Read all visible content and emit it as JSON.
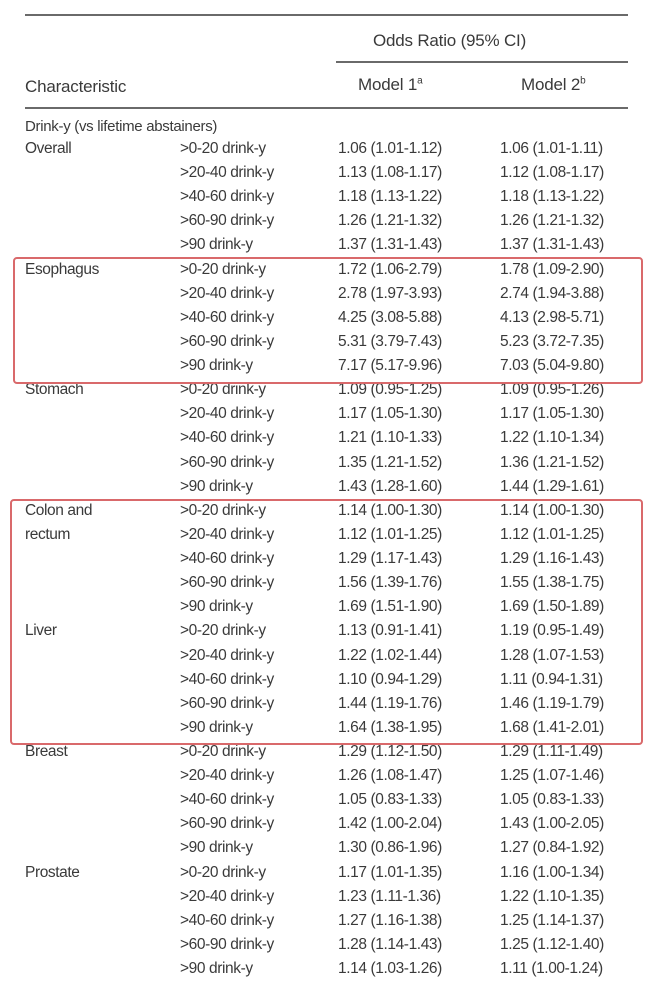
{
  "table": {
    "header": {
      "group_label": "Odds Ratio (95% CI)",
      "characteristic": "Characteristic",
      "model1": "Model 1",
      "model1_sup": "a",
      "model2": "Model 2",
      "model2_sup": "b"
    },
    "section_label": "Drink-y (vs lifetime abstainers)",
    "highlight_color": "#d9696b",
    "groups": [
      {
        "name": [
          "Overall"
        ],
        "highlighted": false,
        "rows": [
          [
            ">0-20 drink-y",
            "1.06 (1.01-1.12)",
            "1.06 (1.01-1.11)"
          ],
          [
            ">20-40 drink-y",
            "1.13 (1.08-1.17)",
            "1.12 (1.08-1.17)"
          ],
          [
            ">40-60 drink-y",
            "1.18 (1.13-1.22)",
            "1.18 (1.13-1.22)"
          ],
          [
            ">60-90 drink-y",
            "1.26 (1.21-1.32)",
            "1.26 (1.21-1.32)"
          ],
          [
            ">90 drink-y",
            "1.37 (1.31-1.43)",
            "1.37 (1.31-1.43)"
          ]
        ]
      },
      {
        "name": [
          "Esophagus"
        ],
        "highlighted": true,
        "rows": [
          [
            ">0-20 drink-y",
            "1.72 (1.06-2.79)",
            "1.78 (1.09-2.90)"
          ],
          [
            ">20-40 drink-y",
            "2.78 (1.97-3.93)",
            "2.74 (1.94-3.88)"
          ],
          [
            ">40-60 drink-y",
            "4.25 (3.08-5.88)",
            "4.13 (2.98-5.71)"
          ],
          [
            ">60-90 drink-y",
            "5.31 (3.79-7.43)",
            "5.23 (3.72-7.35)"
          ],
          [
            ">90 drink-y",
            "7.17 (5.17-9.96)",
            "7.03 (5.04-9.80)"
          ]
        ]
      },
      {
        "name": [
          "Stomach"
        ],
        "highlighted": false,
        "rows": [
          [
            ">0-20 drink-y",
            "1.09 (0.95-1.25)",
            "1.09 (0.95-1.26)"
          ],
          [
            ">20-40 drink-y",
            "1.17 (1.05-1.30)",
            "1.17 (1.05-1.30)"
          ],
          [
            ">40-60 drink-y",
            "1.21 (1.10-1.33)",
            "1.22 (1.10-1.34)"
          ],
          [
            ">60-90 drink-y",
            "1.35 (1.21-1.52)",
            "1.36 (1.21-1.52)"
          ],
          [
            ">90 drink-y",
            "1.43 (1.28-1.60)",
            "1.44 (1.29-1.61)"
          ]
        ]
      },
      {
        "name": [
          "Colon and",
          "rectum"
        ],
        "highlighted": true,
        "rows": [
          [
            ">0-20 drink-y",
            "1.14 (1.00-1.30)",
            "1.14 (1.00-1.30)"
          ],
          [
            ">20-40 drink-y",
            "1.12 (1.01-1.25)",
            "1.12 (1.01-1.25)"
          ],
          [
            ">40-60 drink-y",
            "1.29 (1.17-1.43)",
            "1.29 (1.16-1.43)"
          ],
          [
            ">60-90 drink-y",
            "1.56 (1.39-1.76)",
            "1.55 (1.38-1.75)"
          ],
          [
            ">90 drink-y",
            "1.69 (1.51-1.90)",
            "1.69 (1.50-1.89)"
          ]
        ]
      },
      {
        "name": [
          "Liver"
        ],
        "highlighted": true,
        "rows": [
          [
            ">0-20 drink-y",
            "1.13 (0.91-1.41)",
            "1.19 (0.95-1.49)"
          ],
          [
            ">20-40 drink-y",
            "1.22 (1.02-1.44)",
            "1.28 (1.07-1.53)"
          ],
          [
            ">40-60 drink-y",
            "1.10 (0.94-1.29)",
            "1.11 (0.94-1.31)"
          ],
          [
            ">60-90 drink-y",
            "1.44 (1.19-1.76)",
            "1.46 (1.19-1.79)"
          ],
          [
            ">90 drink-y",
            "1.64 (1.38-1.95)",
            "1.68 (1.41-2.01)"
          ]
        ]
      },
      {
        "name": [
          "Breast"
        ],
        "highlighted": false,
        "rows": [
          [
            ">0-20 drink-y",
            "1.29 (1.12-1.50)",
            "1.29 (1.11-1.49)"
          ],
          [
            ">20-40 drink-y",
            "1.26 (1.08-1.47)",
            "1.25 (1.07-1.46)"
          ],
          [
            ">40-60 drink-y",
            "1.05 (0.83-1.33)",
            "1.05 (0.83-1.33)"
          ],
          [
            ">60-90 drink-y",
            "1.42 (1.00-2.04)",
            "1.43 (1.00-2.05)"
          ],
          [
            ">90 drink-y",
            "1.30 (0.86-1.96)",
            "1.27 (0.84-1.92)"
          ]
        ]
      },
      {
        "name": [
          "Prostate"
        ],
        "highlighted": false,
        "rows": [
          [
            ">0-20 drink-y",
            "1.17 (1.01-1.35)",
            "1.16 (1.00-1.34)"
          ],
          [
            ">20-40 drink-y",
            "1.23 (1.11-1.36)",
            "1.22 (1.10-1.35)"
          ],
          [
            ">40-60 drink-y",
            "1.27 (1.16-1.38)",
            "1.25 (1.14-1.37)"
          ],
          [
            ">60-90 drink-y",
            "1.28 (1.14-1.43)",
            "1.25 (1.12-1.40)"
          ],
          [
            ">90 drink-y",
            "1.14 (1.03-1.26)",
            "1.11 (1.00-1.24)"
          ]
        ]
      }
    ]
  }
}
